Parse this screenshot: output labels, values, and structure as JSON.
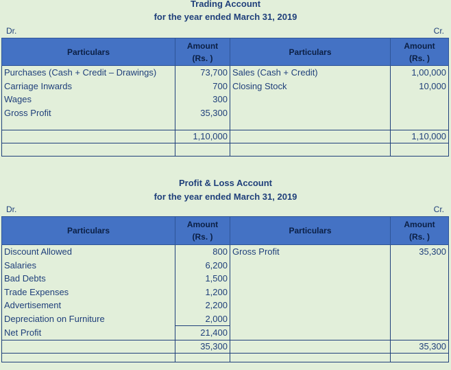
{
  "trading": {
    "title": "Trading Account",
    "subtitle": "for the year ended March 31, 2019",
    "dr": "Dr.",
    "cr": "Cr.",
    "header": {
      "particulars_left": "Particulars",
      "amount_left": "Amount",
      "rs_left": "(Rs. )",
      "particulars_right": "Particulars",
      "amount_right": "Amount",
      "rs_right": "(Rs. )"
    },
    "debit_rows": [
      {
        "label": "Purchases (Cash + Credit – Drawings)",
        "amount": "73,700"
      },
      {
        "label": "Carriage Inwards",
        "amount": "700"
      },
      {
        "label": "Wages",
        "amount": "300"
      },
      {
        "label": "Gross Profit",
        "amount": "35,300"
      }
    ],
    "credit_rows": [
      {
        "label": "Sales (Cash + Credit)",
        "amount": "1,00,000"
      },
      {
        "label": "Closing Stock",
        "amount": "10,000"
      }
    ],
    "total_left": "1,10,000",
    "total_right": "1,10,000"
  },
  "pl": {
    "title": "Profit & Loss Account",
    "subtitle": "for the year ended March 31, 2019",
    "dr": "Dr.",
    "cr": "Cr.",
    "header": {
      "particulars_left": "Particulars",
      "amount_left": "Amount",
      "rs_left": "(Rs. )",
      "particulars_right": "Particulars",
      "amount_right": "Amount",
      "rs_right": "(Rs. )"
    },
    "debit_rows": [
      {
        "label": "Discount Allowed",
        "amount": "800"
      },
      {
        "label": "Salaries",
        "amount": "6,200"
      },
      {
        "label": "Bad Debts",
        "amount": "1,500"
      },
      {
        "label": "Trade Expenses",
        "amount": "1,200"
      },
      {
        "label": "Advertisement",
        "amount": "2,200"
      },
      {
        "label": "Depreciation on Furniture",
        "amount": "2,000"
      },
      {
        "label": "Net Profit",
        "amount": "21,400"
      }
    ],
    "credit_rows": [
      {
        "label": "Gross Profit",
        "amount": "35,300"
      }
    ],
    "total_left": "35,300",
    "total_right": "35,300"
  }
}
